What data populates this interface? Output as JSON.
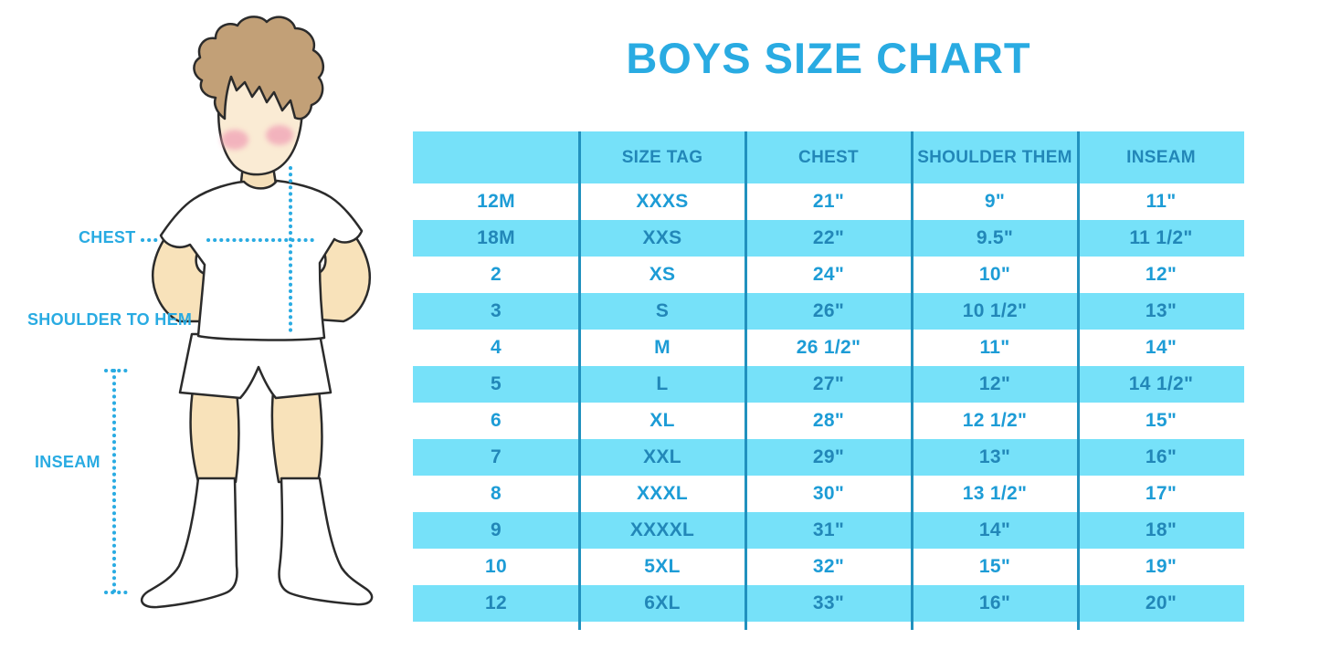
{
  "title": "BOYS SIZE CHART",
  "chart_data": {
    "type": "table",
    "title": "BOYS SIZE CHART",
    "columns": [
      "",
      "SIZE TAG",
      "CHEST",
      "SHOULDER THEM",
      "INSEAM"
    ],
    "rows": [
      [
        "12M",
        "XXXS",
        "21\"",
        "9\"",
        "11\""
      ],
      [
        "18M",
        "XXS",
        "22\"",
        "9.5\"",
        "11 1/2\""
      ],
      [
        "2",
        "XS",
        "24\"",
        "10\"",
        "12\""
      ],
      [
        "3",
        "S",
        "26\"",
        "10 1/2\"",
        "13\""
      ],
      [
        "4",
        "M",
        "26 1/2\"",
        "11\"",
        "14\""
      ],
      [
        "5",
        "L",
        "27\"",
        "12\"",
        "14 1/2\""
      ],
      [
        "6",
        "XL",
        "28\"",
        "12 1/2\"",
        "15\""
      ],
      [
        "7",
        "XXL",
        "29\"",
        "13\"",
        "16\""
      ],
      [
        "8",
        "XXXL",
        "30\"",
        "13 1/2\"",
        "17\""
      ],
      [
        "9",
        "XXXXL",
        "31\"",
        "14\"",
        "18\""
      ],
      [
        "10",
        "5XL",
        "32\"",
        "15\"",
        "19\""
      ],
      [
        "12",
        "6XL",
        "33\"",
        "16\"",
        "20\""
      ]
    ],
    "layout": {
      "stripe_pattern": "header blue, then rows alternate white/blue",
      "grid": "vertical column dividers only"
    }
  },
  "figure": {
    "labels": {
      "chest": "CHEST",
      "shoulder_to_hem": "SHOULDER TO HEM",
      "inseam": "INSEAM"
    }
  },
  "colors": {
    "accent_blue": "#29ABE2",
    "row_cyan": "#76E1F9",
    "text_on_white": "#1D9CD6",
    "text_on_cyan": "#2287B8",
    "divider": "#2191BE",
    "hair": "#C2A077",
    "skin_face": "#FAEBD4",
    "skin_limbs": "#F8E2BA",
    "blush": "#F1A6B8",
    "outline": "#2B2B2B"
  }
}
